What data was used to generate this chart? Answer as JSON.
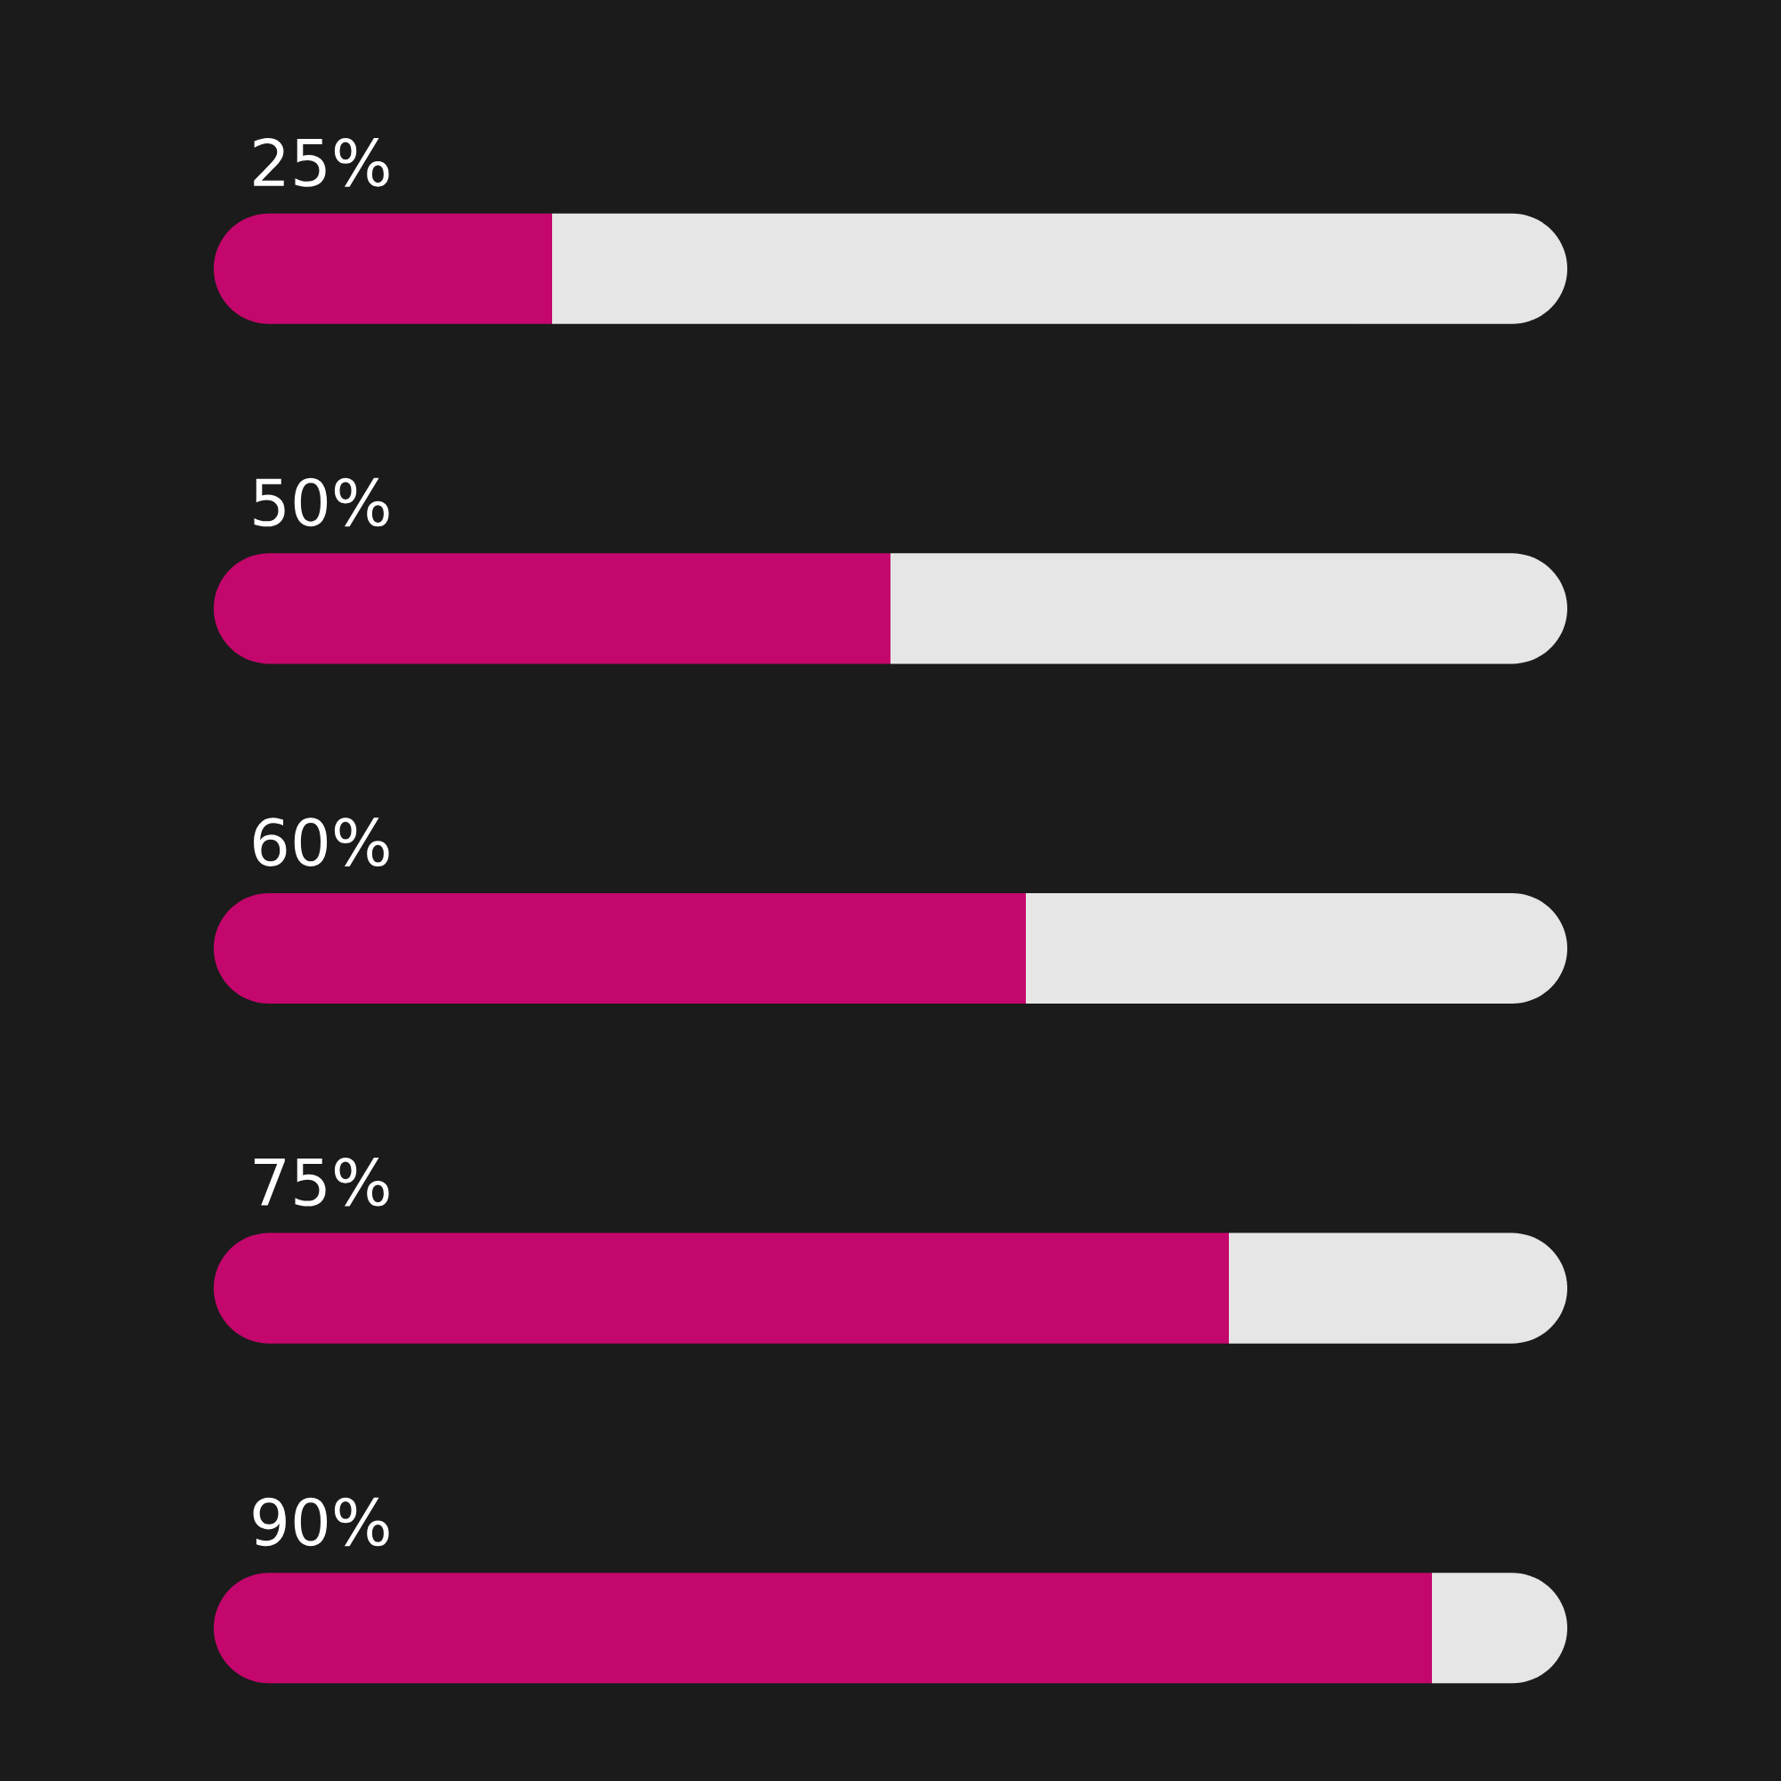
{
  "chart_data": {
    "type": "bar",
    "orientation": "horizontal",
    "stacked": true,
    "categories": [
      null,
      null,
      null,
      null,
      null
    ],
    "series": [
      {
        "color": "#c4076c",
        "values": [
          25,
          50,
          60,
          75,
          90
        ],
        "value_labels": [
          "25%",
          "50%",
          "60%",
          "75%",
          "90%"
        ]
      },
      {
        "color": "#e6e6e6",
        "values": [
          75,
          50,
          40,
          25,
          10
        ]
      }
    ]
  }
}
